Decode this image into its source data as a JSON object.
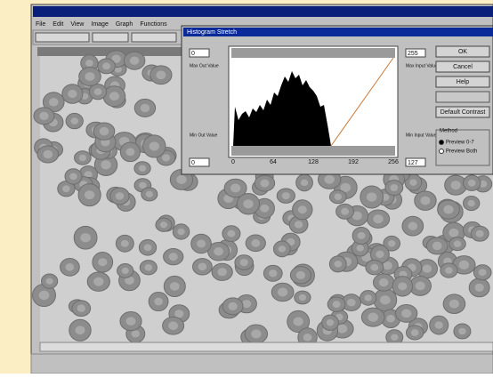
{
  "app": {
    "menu": [
      "File",
      "Edit",
      "View",
      "Image",
      "Graph",
      "Functions"
    ]
  },
  "dialog": {
    "title": "Histogram Stretch",
    "left_top_label": "Max Out Value",
    "left_top_value": "0",
    "left_bottom_label": "Min Out Value",
    "left_bottom_value": "0",
    "right_top_label": "Max Input Value",
    "right_top_value": "255",
    "right_bottom_label": "Min Input Value",
    "right_bottom_value": "127",
    "axis_labels": [
      "0",
      "64",
      "128",
      "192",
      "256"
    ],
    "buttons": [
      "OK",
      "Cancel",
      "Help",
      "Default Contrast"
    ],
    "method_label": "Method",
    "method_options": [
      "Preview 0-7",
      "Preview Both"
    ]
  }
}
